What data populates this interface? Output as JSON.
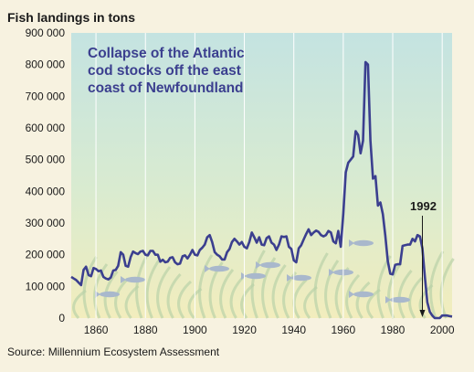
{
  "chart_data": {
    "type": "line",
    "ylabel": "Fish landings in tons",
    "title": "Collapse of the Atlantic cod stocks off the east coast of Newfoundland",
    "annotation": {
      "label": "1992",
      "x": 1992
    },
    "source": "Source: Millennium Ecosystem Assessment",
    "xlim": [
      1850,
      2004
    ],
    "ylim": [
      0,
      900000
    ],
    "x_ticks": [
      1860,
      1880,
      1900,
      1920,
      1940,
      1960,
      1980,
      2000
    ],
    "y_ticks": [
      0,
      100000,
      200000,
      300000,
      400000,
      500000,
      600000,
      700000,
      800000,
      900000
    ],
    "y_tick_labels": [
      "0",
      "100 000",
      "200 000",
      "300 000",
      "400 000",
      "500 000",
      "600 000",
      "700 000",
      "800 000",
      "900 000"
    ],
    "grid": "vertical lines every 10 years",
    "colors": {
      "line": "#3b3f8f",
      "title": "#3b3f8f",
      "background_top": "#bfe0e0",
      "background_bottom": "#f2eec0"
    },
    "series": [
      {
        "values": [
          [
            1850,
            130000
          ],
          [
            1851,
            125000
          ],
          [
            1852,
            120000
          ],
          [
            1853,
            112000
          ],
          [
            1854,
            104000
          ],
          [
            1855,
            152000
          ],
          [
            1856,
            162000
          ],
          [
            1857,
            136000
          ],
          [
            1858,
            132000
          ],
          [
            1859,
            158000
          ],
          [
            1860,
            155000
          ],
          [
            1861,
            148000
          ],
          [
            1862,
            150000
          ],
          [
            1863,
            130000
          ],
          [
            1864,
            125000
          ],
          [
            1865,
            122000
          ],
          [
            1866,
            128000
          ],
          [
            1867,
            150000
          ],
          [
            1868,
            152000
          ],
          [
            1869,
            165000
          ],
          [
            1870,
            208000
          ],
          [
            1871,
            200000
          ],
          [
            1872,
            165000
          ],
          [
            1873,
            162000
          ],
          [
            1874,
            192000
          ],
          [
            1875,
            210000
          ],
          [
            1876,
            205000
          ],
          [
            1877,
            202000
          ],
          [
            1878,
            210000
          ],
          [
            1879,
            212000
          ],
          [
            1880,
            200000
          ],
          [
            1881,
            198000
          ],
          [
            1882,
            212000
          ],
          [
            1883,
            212000
          ],
          [
            1884,
            200000
          ],
          [
            1885,
            200000
          ],
          [
            1886,
            178000
          ],
          [
            1887,
            184000
          ],
          [
            1888,
            176000
          ],
          [
            1889,
            178000
          ],
          [
            1890,
            190000
          ],
          [
            1891,
            192000
          ],
          [
            1892,
            176000
          ],
          [
            1893,
            170000
          ],
          [
            1894,
            172000
          ],
          [
            1895,
            195000
          ],
          [
            1896,
            198000
          ],
          [
            1897,
            188000
          ],
          [
            1898,
            200000
          ],
          [
            1899,
            215000
          ],
          [
            1900,
            200000
          ],
          [
            1901,
            198000
          ],
          [
            1902,
            215000
          ],
          [
            1903,
            222000
          ],
          [
            1904,
            232000
          ],
          [
            1905,
            255000
          ],
          [
            1906,
            262000
          ],
          [
            1907,
            240000
          ],
          [
            1908,
            208000
          ],
          [
            1909,
            200000
          ],
          [
            1910,
            195000
          ],
          [
            1911,
            185000
          ],
          [
            1912,
            185000
          ],
          [
            1913,
            208000
          ],
          [
            1914,
            218000
          ],
          [
            1915,
            240000
          ],
          [
            1916,
            250000
          ],
          [
            1917,
            242000
          ],
          [
            1918,
            232000
          ],
          [
            1919,
            240000
          ],
          [
            1920,
            225000
          ],
          [
            1921,
            220000
          ],
          [
            1922,
            240000
          ],
          [
            1923,
            270000
          ],
          [
            1924,
            255000
          ],
          [
            1925,
            238000
          ],
          [
            1926,
            255000
          ],
          [
            1927,
            232000
          ],
          [
            1928,
            230000
          ],
          [
            1929,
            252000
          ],
          [
            1930,
            258000
          ],
          [
            1931,
            238000
          ],
          [
            1932,
            232000
          ],
          [
            1933,
            215000
          ],
          [
            1934,
            232000
          ],
          [
            1935,
            258000
          ],
          [
            1936,
            256000
          ],
          [
            1937,
            258000
          ],
          [
            1938,
            225000
          ],
          [
            1939,
            218000
          ],
          [
            1940,
            182000
          ],
          [
            1941,
            176000
          ],
          [
            1942,
            220000
          ],
          [
            1943,
            230000
          ],
          [
            1944,
            248000
          ],
          [
            1945,
            265000
          ],
          [
            1946,
            280000
          ],
          [
            1947,
            262000
          ],
          [
            1948,
            270000
          ],
          [
            1949,
            276000
          ],
          [
            1950,
            272000
          ],
          [
            1951,
            262000
          ],
          [
            1952,
            258000
          ],
          [
            1953,
            262000
          ],
          [
            1954,
            275000
          ],
          [
            1955,
            270000
          ],
          [
            1956,
            242000
          ],
          [
            1957,
            236000
          ],
          [
            1958,
            275000
          ],
          [
            1959,
            225000
          ],
          [
            1960,
            330000
          ],
          [
            1961,
            460000
          ],
          [
            1962,
            490000
          ],
          [
            1963,
            500000
          ],
          [
            1964,
            510000
          ],
          [
            1965,
            590000
          ],
          [
            1966,
            578000
          ],
          [
            1967,
            520000
          ],
          [
            1968,
            560000
          ],
          [
            1969,
            808000
          ],
          [
            1970,
            800000
          ],
          [
            1971,
            560000
          ],
          [
            1972,
            440000
          ],
          [
            1973,
            448000
          ],
          [
            1974,
            355000
          ],
          [
            1975,
            365000
          ],
          [
            1976,
            328000
          ],
          [
            1977,
            260000
          ],
          [
            1978,
            180000
          ],
          [
            1979,
            140000
          ],
          [
            1980,
            138000
          ],
          [
            1981,
            168000
          ],
          [
            1982,
            170000
          ],
          [
            1983,
            170000
          ],
          [
            1984,
            228000
          ],
          [
            1985,
            230000
          ],
          [
            1986,
            232000
          ],
          [
            1987,
            232000
          ],
          [
            1988,
            250000
          ],
          [
            1989,
            242000
          ],
          [
            1990,
            262000
          ],
          [
            1991,
            258000
          ],
          [
            1992,
            220000
          ],
          [
            1993,
            130000
          ],
          [
            1994,
            50000
          ],
          [
            1995,
            20000
          ],
          [
            1996,
            8000
          ],
          [
            1997,
            0
          ],
          [
            1998,
            0
          ],
          [
            1999,
            0
          ],
          [
            2000,
            8000
          ],
          [
            2001,
            8000
          ],
          [
            2002,
            8000
          ],
          [
            2003,
            6000
          ],
          [
            2004,
            5000
          ]
        ]
      }
    ]
  }
}
